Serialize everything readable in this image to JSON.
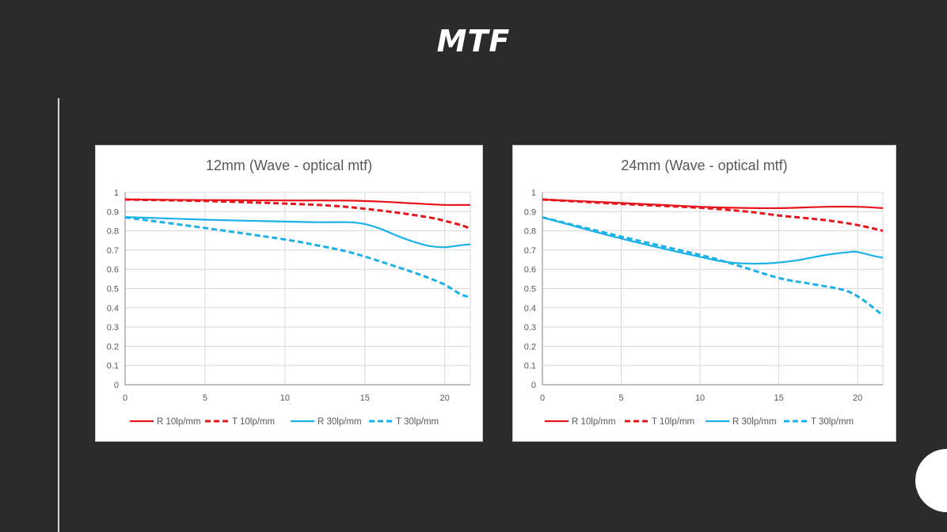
{
  "slide": {
    "title": "MTF"
  },
  "colors": {
    "red": "#e8141b",
    "blue": "#1ab0e8",
    "grid": "#d9d9d9",
    "axis": "#7f7f7f",
    "text": "#595959"
  },
  "chart_data": [
    {
      "type": "line",
      "title": "12mm  (Wave - optical mtf)",
      "xlim": [
        0,
        21.6
      ],
      "ylim": [
        0,
        1
      ],
      "xticks": [
        0,
        5,
        10,
        15,
        20
      ],
      "yticks": [
        0,
        0.1,
        0.2,
        0.3,
        0.4,
        0.5,
        0.6,
        0.7,
        0.8,
        0.9,
        1
      ],
      "grid": true,
      "legend": "bottom",
      "series": [
        {
          "name": "R 10lp/mm",
          "color": "#e8141b",
          "dash": "solid",
          "width": 2.2,
          "x": [
            0,
            5,
            10,
            12,
            14,
            16,
            18,
            20,
            21.6
          ],
          "y": [
            0.963,
            0.96,
            0.958,
            0.958,
            0.957,
            0.952,
            0.943,
            0.935,
            0.935
          ]
        },
        {
          "name": "T 10lp/mm",
          "color": "#e8141b",
          "dash": "dashed",
          "width": 3,
          "x": [
            0,
            5,
            10,
            13,
            15,
            17,
            19,
            20,
            21,
            21.6
          ],
          "y": [
            0.963,
            0.955,
            0.942,
            0.93,
            0.915,
            0.895,
            0.87,
            0.852,
            0.83,
            0.812
          ]
        },
        {
          "name": "R 30lp/mm",
          "color": "#1ab0e8",
          "dash": "solid",
          "width": 2.2,
          "x": [
            0,
            5,
            10,
            12,
            14,
            15,
            16,
            17,
            18,
            19,
            20,
            21,
            21.6
          ],
          "y": [
            0.872,
            0.858,
            0.848,
            0.845,
            0.845,
            0.835,
            0.81,
            0.775,
            0.745,
            0.722,
            0.715,
            0.725,
            0.73
          ]
        },
        {
          "name": "T 30lp/mm",
          "color": "#1ab0e8",
          "dash": "dashed",
          "width": 3,
          "x": [
            0,
            5,
            10,
            12,
            14,
            16,
            18,
            19,
            20,
            21,
            21.6
          ],
          "y": [
            0.87,
            0.815,
            0.755,
            0.725,
            0.69,
            0.64,
            0.585,
            0.555,
            0.52,
            0.47,
            0.455
          ]
        }
      ]
    },
    {
      "type": "line",
      "title": "24mm  (Wave - optical mtf)",
      "xlim": [
        0,
        21.6
      ],
      "ylim": [
        0,
        1
      ],
      "xticks": [
        0,
        5,
        10,
        15,
        20
      ],
      "yticks": [
        0,
        0.1,
        0.2,
        0.3,
        0.4,
        0.5,
        0.6,
        0.7,
        0.8,
        0.9,
        1
      ],
      "grid": true,
      "legend": "bottom",
      "series": [
        {
          "name": "R 10lp/mm",
          "color": "#e8141b",
          "dash": "solid",
          "width": 2.2,
          "x": [
            0,
            5,
            10,
            12,
            15,
            18,
            20,
            21.6
          ],
          "y": [
            0.963,
            0.945,
            0.925,
            0.92,
            0.918,
            0.925,
            0.925,
            0.918
          ]
        },
        {
          "name": "T 10lp/mm",
          "color": "#e8141b",
          "dash": "dashed",
          "width": 3,
          "x": [
            0,
            5,
            10,
            13,
            15,
            18,
            20,
            21.6
          ],
          "y": [
            0.963,
            0.94,
            0.92,
            0.9,
            0.88,
            0.855,
            0.83,
            0.8
          ]
        },
        {
          "name": "R 30lp/mm",
          "color": "#1ab0e8",
          "dash": "solid",
          "width": 2.2,
          "x": [
            0,
            5,
            10,
            12,
            14,
            16,
            18,
            19.5,
            20,
            21,
            21.6
          ],
          "y": [
            0.87,
            0.76,
            0.665,
            0.635,
            0.63,
            0.645,
            0.675,
            0.69,
            0.69,
            0.67,
            0.66
          ]
        },
        {
          "name": "T 30lp/mm",
          "color": "#1ab0e8",
          "dash": "dashed",
          "width": 3,
          "x": [
            0,
            5,
            10,
            12,
            15,
            17,
            19,
            20,
            21,
            21.6
          ],
          "y": [
            0.87,
            0.77,
            0.675,
            0.63,
            0.555,
            0.525,
            0.495,
            0.46,
            0.4,
            0.36
          ]
        }
      ]
    }
  ]
}
